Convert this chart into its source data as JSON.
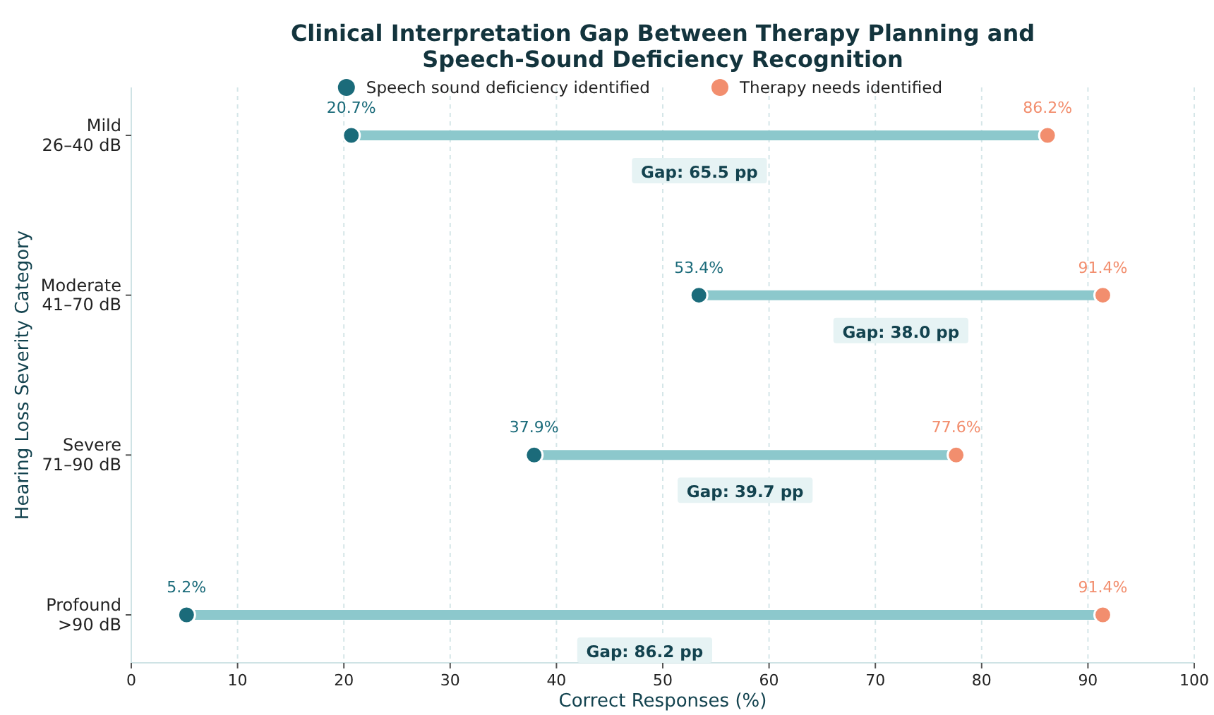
{
  "chart_data": {
    "type": "scatter",
    "orientation": "horizontal",
    "title": "Clinical Interpretation Gap Between Therapy Planning and\nSpeech-Sound Deficiency Recognition",
    "xlabel": "Correct Responses (%)",
    "ylabel": "Hearing Loss Severity Category",
    "categories": [
      "Mild\n26–40 dB",
      "Moderate\n41–70 dB",
      "Severe\n71–90 dB",
      "Profound\n>90 dB"
    ],
    "series": [
      {
        "name": "Speech sound deficiency identified",
        "color": "#1b6b7a",
        "values": [
          20.7,
          53.4,
          37.9,
          5.2
        ],
        "value_labels": [
          "20.7%",
          "53.4%",
          "37.9%",
          "5.2%"
        ]
      },
      {
        "name": "Therapy needs identified",
        "color": "#f28e6e",
        "values": [
          86.2,
          91.4,
          77.6,
          91.4
        ],
        "value_labels": [
          "86.2%",
          "91.4%",
          "77.6%",
          "91.4%"
        ]
      }
    ],
    "annotations": [
      "Gap: 65.5 pp",
      "Gap: 38.0 pp",
      "Gap: 39.7 pp",
      "Gap: 86.2 pp"
    ],
    "xlim": [
      0,
      100
    ],
    "xticks": [
      0,
      10,
      20,
      30,
      40,
      50,
      60,
      70,
      80,
      90,
      100
    ],
    "grid": "x",
    "legend": "top",
    "marker": "circle"
  }
}
